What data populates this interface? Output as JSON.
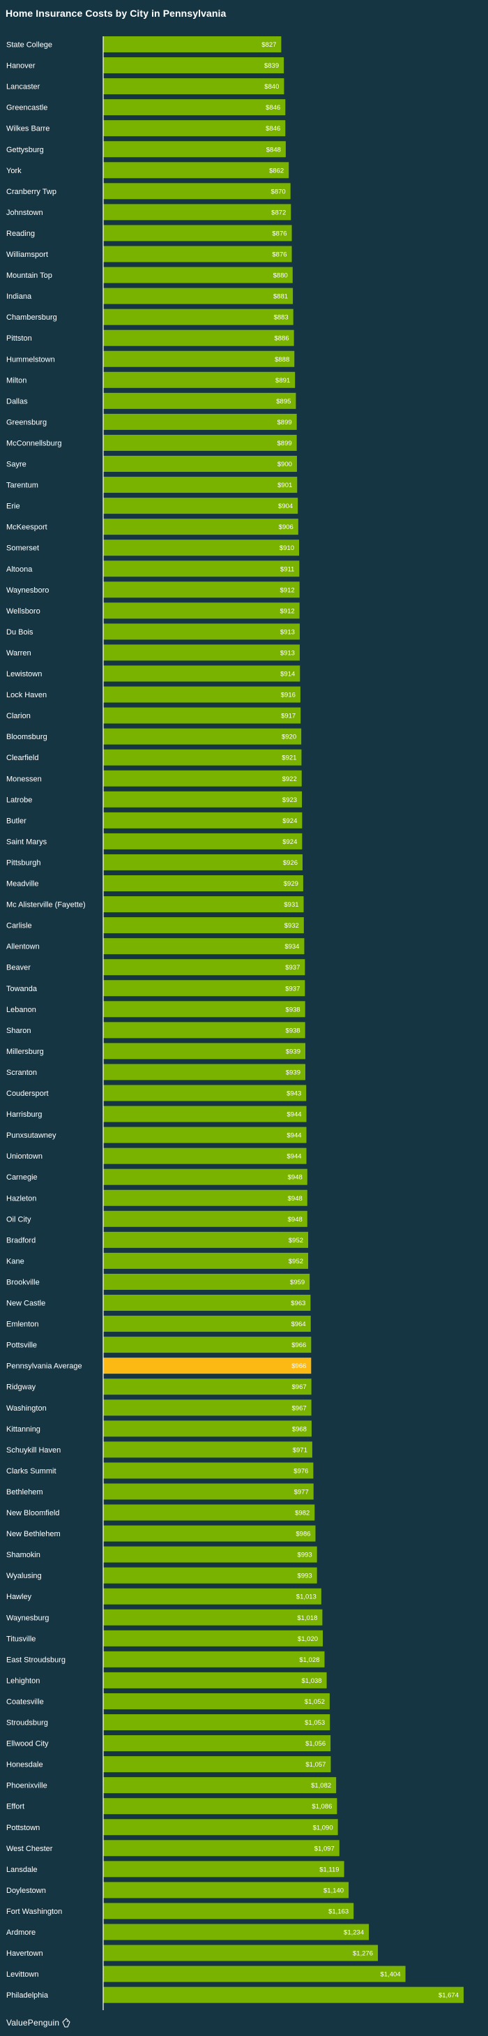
{
  "title": "Home Insurance Costs by City in Pennsylvania",
  "brand": "ValuePenguin",
  "colors": {
    "background": "#163542",
    "bar": "#79b300",
    "highlight": "#fcb813",
    "axis": "#ffffff"
  },
  "chart_data": {
    "type": "bar",
    "orientation": "horizontal",
    "title": "Home Insurance Costs by City in Pennsylvania",
    "xlabel": "",
    "ylabel": "",
    "highlight": "Pennsylvania Average",
    "categories": [
      "State College",
      "Hanover",
      "Lancaster",
      "Greencastle",
      "Wilkes Barre",
      "Gettysburg",
      "York",
      "Cranberry Twp",
      "Johnstown",
      "Reading",
      "Williamsport",
      "Mountain Top",
      "Indiana",
      "Chambersburg",
      "Pittston",
      "Hummelstown",
      "Milton",
      "Dallas",
      "Greensburg",
      "McConnellsburg",
      "Sayre",
      "Tarentum",
      "Erie",
      "McKeesport",
      "Somerset",
      "Altoona",
      "Waynesboro",
      "Wellsboro",
      "Du Bois",
      "Warren",
      "Lewistown",
      "Lock Haven",
      "Clarion",
      "Bloomsburg",
      "Clearfield",
      "Monessen",
      "Latrobe",
      "Butler",
      "Saint Marys",
      "Pittsburgh",
      "Meadville",
      "Mc Alisterville (Fayette)",
      "Carlisle",
      "Allentown",
      "Beaver",
      "Towanda",
      "Lebanon",
      "Sharon",
      "Millersburg",
      "Scranton",
      "Coudersport",
      "Harrisburg",
      "Punxsutawney",
      "Uniontown",
      "Carnegie",
      "Hazleton",
      "Oil City",
      "Bradford",
      "Kane",
      "Brookville",
      "New Castle",
      "Emlenton",
      "Pottsville",
      "Pennsylvania Average",
      "Ridgway",
      "Washington",
      "Kittanning",
      "Schuykill Haven",
      "Clarks Summit",
      "Bethlehem",
      "New Bloomfield",
      "New Bethlehem",
      "Shamokin",
      "Wyalusing",
      "Hawley",
      "Waynesburg",
      "Titusville",
      "East Stroudsburg",
      "Lehighton",
      "Coatesville",
      "Stroudsburg",
      "Ellwood City",
      "Honesdale",
      "Phoenixville",
      "Effort",
      "Pottstown",
      "West Chester",
      "Lansdale",
      "Doylestown",
      "Fort Washington",
      "Ardmore",
      "Havertown",
      "Levittown",
      "Philadelphia"
    ],
    "values": [
      827,
      839,
      840,
      846,
      846,
      848,
      862,
      870,
      872,
      876,
      876,
      880,
      881,
      883,
      886,
      888,
      891,
      895,
      899,
      899,
      900,
      901,
      904,
      906,
      910,
      911,
      912,
      912,
      913,
      913,
      914,
      916,
      917,
      920,
      921,
      922,
      923,
      924,
      924,
      926,
      929,
      931,
      932,
      934,
      937,
      937,
      938,
      938,
      939,
      939,
      943,
      944,
      944,
      944,
      948,
      948,
      948,
      952,
      952,
      959,
      963,
      964,
      966,
      966,
      967,
      967,
      968,
      971,
      976,
      977,
      982,
      986,
      993,
      993,
      1013,
      1018,
      1020,
      1028,
      1038,
      1052,
      1053,
      1056,
      1057,
      1082,
      1086,
      1090,
      1097,
      1119,
      1140,
      1163,
      1234,
      1276,
      1404,
      1674
    ],
    "value_labels": [
      "$827",
      "$839",
      "$840",
      "$846",
      "$846",
      "$848",
      "$862",
      "$870",
      "$872",
      "$876",
      "$876",
      "$880",
      "$881",
      "$883",
      "$886",
      "$888",
      "$891",
      "$895",
      "$899",
      "$899",
      "$900",
      "$901",
      "$904",
      "$906",
      "$910",
      "$911",
      "$912",
      "$912",
      "$913",
      "$913",
      "$914",
      "$916",
      "$917",
      "$920",
      "$921",
      "$922",
      "$923",
      "$924",
      "$924",
      "$926",
      "$929",
      "$931",
      "$932",
      "$934",
      "$937",
      "$937",
      "$938",
      "$938",
      "$939",
      "$939",
      "$943",
      "$944",
      "$944",
      "$944",
      "$948",
      "$948",
      "$948",
      "$952",
      "$952",
      "$959",
      "$963",
      "$964",
      "$966",
      "$966",
      "$967",
      "$967",
      "$968",
      "$971",
      "$976",
      "$977",
      "$982",
      "$986",
      "$993",
      "$993",
      "$1,013",
      "$1,018",
      "$1,020",
      "$1,028",
      "$1,038",
      "$1,052",
      "$1,053",
      "$1,056",
      "$1,057",
      "$1,082",
      "$1,086",
      "$1,090",
      "$1,097",
      "$1,119",
      "$1,140",
      "$1,163",
      "$1,234",
      "$1,276",
      "$1,404",
      "$1,674"
    ],
    "xlim": [
      0,
      1674
    ],
    "grid": false,
    "legend": "none"
  }
}
